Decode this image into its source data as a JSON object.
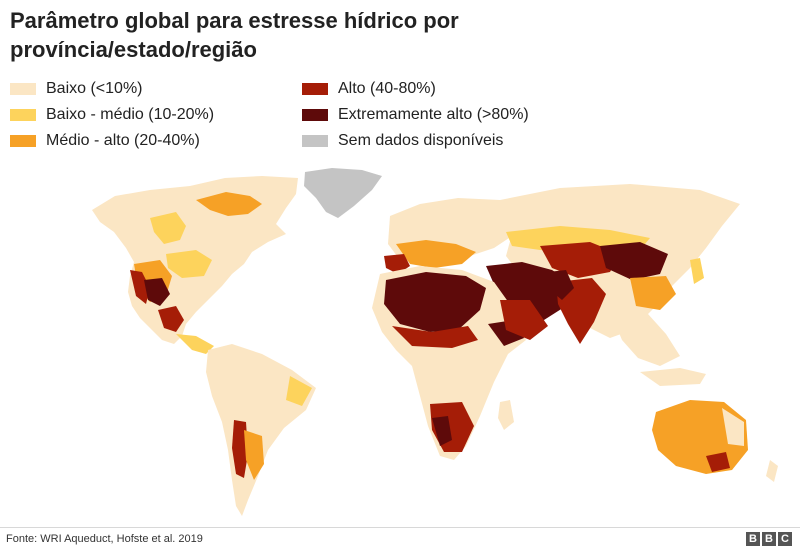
{
  "title": "Parâmetro global para estresse hídrico por província/estado/região",
  "legend": [
    {
      "label": "Baixo (<10%)",
      "color": "#fbe6c4"
    },
    {
      "label": "Baixo - médio (10-20%)",
      "color": "#fdd35c"
    },
    {
      "label": "Médio - alto (20-40%)",
      "color": "#f6a126"
    },
    {
      "label": "Alto (40-80%)",
      "color": "#a51d07"
    },
    {
      "label": "Extremamente alto (>80%)",
      "color": "#5e0a0a"
    },
    {
      "label": "Sem dados disponíveis",
      "color": "#c4c4c4"
    }
  ],
  "source": "Fonte: WRI Aqueduct, Hofste et al. 2019",
  "logo": {
    "letters": [
      "B",
      "B",
      "C"
    ]
  }
}
